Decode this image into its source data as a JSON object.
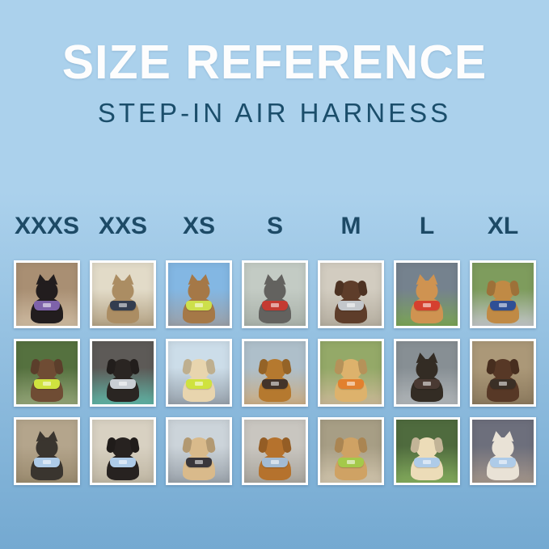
{
  "header": {
    "title": "SIZE REFERENCE",
    "subtitle": "STEP-IN AIR HARNESS"
  },
  "colors": {
    "background_top": "#abd1ec",
    "background_bottom": "#74a9d1",
    "title": "#fdfdfd",
    "subtitle": "#1b4e6b",
    "size_label": "#1d4a66",
    "photo_frame": "#ffffff"
  },
  "sizes": [
    "XXXS",
    "XXS",
    "XS",
    "S",
    "M",
    "L",
    "XL"
  ],
  "grid": {
    "rows": [
      {
        "cells": [
          {
            "size": "XXXS",
            "species": "cat",
            "ears": "pointy",
            "photo": "Black kitten wearing a purple harness indoors",
            "pet_color": "#221d1e",
            "harness_color": "#7e62aa",
            "scene_top": "#a98f73",
            "scene_bottom": "#cdbaa0"
          },
          {
            "size": "XXS",
            "species": "cat",
            "ears": "pointy",
            "photo": "Bengal cat wearing a navy harness beside a window",
            "pet_color": "#ab8d63",
            "harness_color": "#333d4f",
            "scene_top": "#e2dbc8",
            "scene_bottom": "#b3a284"
          },
          {
            "size": "XS",
            "species": "cat",
            "ears": "pointy",
            "photo": "Tabby cat wearing a neon green harness inside a car",
            "pet_color": "#a57847",
            "harness_color": "#cde04b",
            "scene_top": "#83b7e3",
            "scene_bottom": "#9aa0a8"
          },
          {
            "size": "S",
            "species": "dog",
            "ears": "pointy",
            "photo": "Grey French bulldog wearing a red harness on a sidewalk",
            "pet_color": "#63625f",
            "harness_color": "#c43a31",
            "scene_top": "#c3cbc4",
            "scene_bottom": "#a9b1a9"
          },
          {
            "size": "M",
            "species": "dog",
            "ears": "floppy",
            "photo": "Chocolate spaniel wearing a grey harness on pavement",
            "pet_color": "#5e3d2a",
            "harness_color": "#c3c7cb",
            "scene_top": "#d2ccc0",
            "scene_bottom": "#b5aea0"
          },
          {
            "size": "L",
            "species": "dog",
            "ears": "pointy",
            "photo": "Shiba Inu wearing a red harness holding an orange ball on grass",
            "pet_color": "#cf9351",
            "harness_color": "#d5402f",
            "scene_top": "#75828e",
            "scene_bottom": "#7aa355"
          },
          {
            "size": "XL",
            "species": "dog",
            "ears": "floppy",
            "photo": "Golden retriever wearing a navy harness on a flower-lined path",
            "pet_color": "#c08a45",
            "harness_color": "#2f4f95",
            "scene_top": "#7e9c5d",
            "scene_bottom": "#c0c4c6"
          }
        ]
      },
      {
        "cells": [
          {
            "size": "XXXS",
            "species": "dog",
            "ears": "floppy",
            "photo": "Chocolate dachshund puppy wearing a neon green harness in a garden",
            "pet_color": "#6f4c34",
            "harness_color": "#cfe23f",
            "scene_top": "#55713f",
            "scene_bottom": "#93a477"
          },
          {
            "size": "XXS",
            "species": "dog",
            "ears": "floppy",
            "photo": "Black pug puppy wearing a grey harness on a teal blanket",
            "pet_color": "#2a2522",
            "harness_color": "#c9ced4",
            "scene_top": "#5d5a57",
            "scene_bottom": "#5fb3a4"
          },
          {
            "size": "XS",
            "species": "dog",
            "ears": "floppy",
            "photo": "Cream dachshund wearing a neon green harness on a boat",
            "pet_color": "#e8d5ae",
            "harness_color": "#cfe23f",
            "scene_top": "#ccdde9",
            "scene_bottom": "#97a1ab"
          },
          {
            "size": "S",
            "species": "dog",
            "ears": "floppy",
            "photo": "Tan dachshund wearing a dark brown harness on a wooden dock",
            "pet_color": "#b5792f",
            "harness_color": "#42332a",
            "scene_top": "#aebfca",
            "scene_bottom": "#c9ad85"
          },
          {
            "size": "M",
            "species": "dog",
            "ears": "floppy",
            "photo": "Golden retriever puppy wearing an orange harness on a lawn",
            "pet_color": "#ddb26c",
            "harness_color": "#e2802e",
            "scene_top": "#94a968",
            "scene_bottom": "#c9b896"
          },
          {
            "size": "L",
            "species": "dog",
            "ears": "pointy",
            "photo": "Black and tan dog wearing a dark harness inside a metal tunnel",
            "pet_color": "#332c24",
            "harness_color": "#4a3a33",
            "scene_top": "#878f94",
            "scene_bottom": "#b0b5b8"
          },
          {
            "size": "XL",
            "species": "dog",
            "ears": "floppy",
            "photo": "Brown and white dog wearing a black harness on wooden steps",
            "pet_color": "#573826",
            "harness_color": "#3a2f26",
            "scene_top": "#ab9878",
            "scene_bottom": "#8c7a5e"
          }
        ]
      },
      {
        "cells": [
          {
            "size": "XXXS",
            "species": "dog",
            "ears": "pointy",
            "photo": "Yorkshire terrier puppy wearing a light blue harness on a sunny path",
            "pet_color": "#3a352f",
            "harness_color": "#aecbe8",
            "scene_top": "#b4a58c",
            "scene_bottom": "#9a8a6e"
          },
          {
            "size": "XXS",
            "species": "dog",
            "ears": "floppy",
            "photo": "Black and tan dachshund puppy wearing a light blue harness on a sofa",
            "pet_color": "#272220",
            "harness_color": "#aecbe8",
            "scene_top": "#d8d1c2",
            "scene_bottom": "#bfb6a3"
          },
          {
            "size": "XS",
            "species": "dog",
            "ears": "floppy",
            "photo": "Apricot poodle puppy wearing a black harness on a deck",
            "pet_color": "#d9ba8b",
            "harness_color": "#39363a",
            "scene_top": "#ccd4da",
            "scene_bottom": "#9aa2aa"
          },
          {
            "size": "S",
            "species": "dog",
            "ears": "floppy",
            "photo": "Red dachshund wearing a grey-blue harness on pavement",
            "pet_color": "#b5722d",
            "harness_color": "#a3bbd3",
            "scene_top": "#c9c6c0",
            "scene_bottom": "#a9a59d"
          },
          {
            "size": "M",
            "species": "dog",
            "ears": "floppy",
            "photo": "Apricot doodle wearing a green harness on a sidewalk",
            "pet_color": "#cfa264",
            "harness_color": "#a4c94a",
            "scene_top": "#a79e85",
            "scene_bottom": "#cfc3ab"
          },
          {
            "size": "L",
            "species": "dog",
            "ears": "floppy",
            "photo": "Cream golden retriever puppy wearing a light blue harness on grass",
            "pet_color": "#ecdcb8",
            "harness_color": "#aecbe8",
            "scene_top": "#4f6b3e",
            "scene_bottom": "#83ab5c"
          },
          {
            "size": "XL",
            "species": "dog",
            "ears": "pointy",
            "photo": "White dog wearing a light blue harness on a city street at dusk",
            "pet_color": "#e9e2d6",
            "harness_color": "#aecbe8",
            "scene_top": "#6d6f7c",
            "scene_bottom": "#a3958a"
          }
        ]
      }
    ]
  }
}
